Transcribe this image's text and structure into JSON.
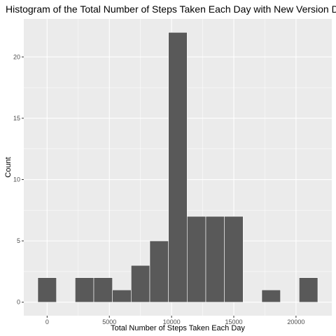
{
  "chart_data": {
    "type": "bar",
    "title": "Histogram of the Total Number of Steps Taken Each Day with New Version Data",
    "xlabel": "Total Number of Steps Taken Each Day",
    "ylabel": "Count",
    "bin_width": 1500,
    "bins": [
      {
        "x0": -750,
        "x1": 750,
        "count": 2
      },
      {
        "x0": 750,
        "x1": 2250,
        "count": 0
      },
      {
        "x0": 2250,
        "x1": 3750,
        "count": 2
      },
      {
        "x0": 3750,
        "x1": 5250,
        "count": 2
      },
      {
        "x0": 5250,
        "x1": 6750,
        "count": 1
      },
      {
        "x0": 6750,
        "x1": 8250,
        "count": 3
      },
      {
        "x0": 8250,
        "x1": 9750,
        "count": 5
      },
      {
        "x0": 9750,
        "x1": 11250,
        "count": 22
      },
      {
        "x0": 11250,
        "x1": 12750,
        "count": 7
      },
      {
        "x0": 12750,
        "x1": 14250,
        "count": 7
      },
      {
        "x0": 14250,
        "x1": 15750,
        "count": 7
      },
      {
        "x0": 15750,
        "x1": 17250,
        "count": 0
      },
      {
        "x0": 17250,
        "x1": 18750,
        "count": 1
      },
      {
        "x0": 18750,
        "x1": 20250,
        "count": 0
      },
      {
        "x0": 20250,
        "x1": 21750,
        "count": 2
      }
    ],
    "xlim": [
      -1875,
      22875
    ],
    "ylim": [
      -1.1,
      23.1
    ],
    "x_ticks": [
      0,
      5000,
      10000,
      15000,
      20000
    ],
    "x_tick_labels": [
      "0",
      "5000",
      "10000",
      "15000",
      "20000"
    ],
    "y_ticks": [
      0,
      5,
      10,
      15,
      20
    ],
    "y_tick_labels": [
      "0",
      "5",
      "10",
      "15",
      "20"
    ],
    "grid": true,
    "colors": {
      "panel_background": "#ebebeb",
      "major_grid": "#ffffff",
      "bar_fill": "#595959",
      "bar_outline": "#ffffff",
      "tick_text": "#4d4d4d"
    }
  }
}
